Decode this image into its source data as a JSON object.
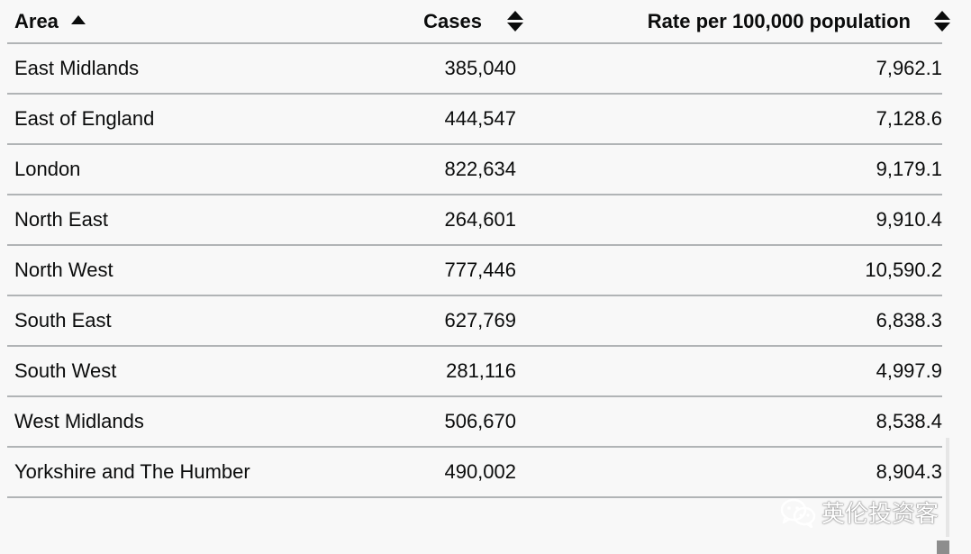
{
  "table": {
    "headers": {
      "area": "Area",
      "cases": "Cases",
      "rate": "Rate per 100,000 population"
    },
    "sort": {
      "column": "area",
      "direction": "ascending"
    },
    "rows": [
      {
        "area": "East Midlands",
        "cases": "385,040",
        "rate": "7,962.1"
      },
      {
        "area": "East of England",
        "cases": "444,547",
        "rate": "7,128.6"
      },
      {
        "area": "London",
        "cases": "822,634",
        "rate": "9,179.1"
      },
      {
        "area": "North East",
        "cases": "264,601",
        "rate": "9,910.4"
      },
      {
        "area": "North West",
        "cases": "777,446",
        "rate": "10,590.2"
      },
      {
        "area": "South East",
        "cases": "627,769",
        "rate": "6,838.3"
      },
      {
        "area": "South West",
        "cases": "281,116",
        "rate": "4,997.9"
      },
      {
        "area": "West Midlands",
        "cases": "506,670",
        "rate": "8,538.4"
      },
      {
        "area": "Yorkshire and The Humber",
        "cases": "490,002",
        "rate": "8,904.3"
      }
    ]
  },
  "watermark": {
    "icon": "wechat-icon",
    "text": "英伦投资客"
  },
  "colors": {
    "text": "#0b0c0c",
    "border": "#b1b4b6",
    "background": "#f8f8f8"
  }
}
